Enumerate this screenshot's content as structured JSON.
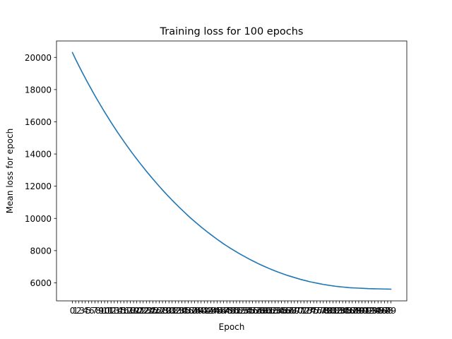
{
  "chart_data": {
    "type": "line",
    "title": "Training loss for 100 epochs",
    "xlabel": "Epoch",
    "ylabel": "Mean loss for epoch",
    "xlim": [
      -4.95,
      103.95
    ],
    "ylim": [
      4880,
      21020
    ],
    "y_ticks": [
      6000,
      8000,
      10000,
      12000,
      14000,
      16000,
      18000,
      20000
    ],
    "y_tick_labels": [
      "6000",
      "8000",
      "10000",
      "12000",
      "14000",
      "16000",
      "18000",
      "20000"
    ],
    "x_ticks_every_integer": [
      0,
      99
    ],
    "grid": false,
    "legend": "none",
    "line_color": "#1f77b4",
    "series": [
      {
        "values": [
          20300,
          19880,
          19480,
          19090,
          18710,
          18340,
          17980,
          17620,
          17280,
          16940,
          16610,
          16290,
          15970,
          15660,
          15360,
          15070,
          14780,
          14500,
          14220,
          13950,
          13690,
          13430,
          13180,
          12930,
          12690,
          12450,
          12220,
          11990,
          11770,
          11550,
          11340,
          11130,
          10930,
          10730,
          10540,
          10350,
          10160,
          9980,
          9810,
          9640,
          9470,
          9310,
          9150,
          9000,
          8850,
          8700,
          8560,
          8420,
          8290,
          8160,
          8040,
          7920,
          7800,
          7690,
          7580,
          7470,
          7370,
          7270,
          7170,
          7080,
          6990,
          6900,
          6820,
          6740,
          6660,
          6590,
          6520,
          6450,
          6390,
          6330,
          6270,
          6210,
          6160,
          6110,
          6060,
          6020,
          5980,
          5940,
          5900,
          5870,
          5840,
          5810,
          5780,
          5760,
          5740,
          5720,
          5700,
          5690,
          5680,
          5670,
          5660,
          5650,
          5640,
          5635,
          5630,
          5625,
          5620,
          5615,
          5610,
          5605
        ]
      }
    ]
  }
}
